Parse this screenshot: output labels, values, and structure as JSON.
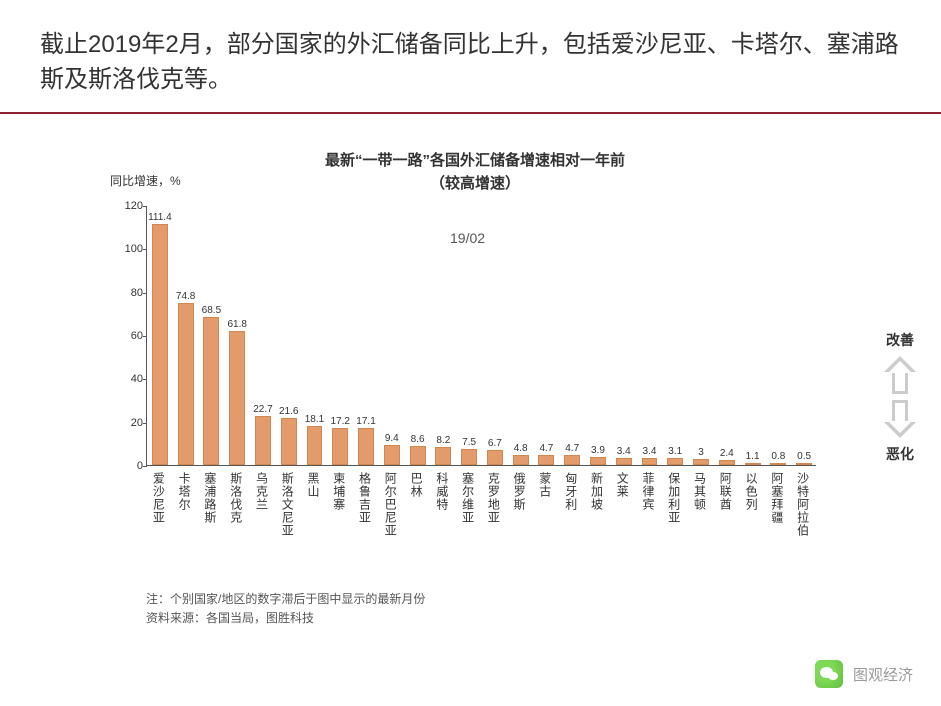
{
  "header": {
    "text": "截止2019年2月，部分国家的外汇储备同比上升，包括爱沙尼亚、卡塔尔、塞浦路斯及斯洛伐克等。"
  },
  "chart": {
    "type": "bar",
    "title_line1": "最新“一带一路”各国外汇储备增速相对一年前",
    "title_line2": "（较高增速）",
    "y_unit_label": "同比增速，%",
    "date_label": "19/02",
    "ylim": [
      0,
      120
    ],
    "ytick_step": 20,
    "yticks": [
      0,
      20,
      40,
      60,
      80,
      100,
      120
    ],
    "bar_color": "#e39b6b",
    "bar_border": "#d08850",
    "label_fontsize": 10,
    "xlabel_fontsize": 12,
    "categories": [
      "爱沙尼亚",
      "卡塔尔",
      "塞浦路斯",
      "斯洛伐克",
      "乌克兰",
      "斯洛文尼亚",
      "黑山",
      "柬埔寨",
      "格鲁吉亚",
      "阿尔巴尼亚",
      "巴林",
      "科威特",
      "塞尔维亚",
      "克罗地亚",
      "俄罗斯",
      "蒙古",
      "匈牙利",
      "新加坡",
      "文莱",
      "菲律宾",
      "保加利亚",
      "马其顿",
      "阿联酋",
      "以色列",
      "阿塞拜疆",
      "沙特阿拉伯"
    ],
    "values": [
      111.4,
      74.8,
      68.5,
      61.8,
      22.7,
      21.6,
      18.1,
      17.2,
      17.1,
      9.4,
      8.6,
      8.2,
      7.5,
      6.7,
      4.8,
      4.7,
      4.7,
      3.9,
      3.4,
      3.4,
      3.1,
      3.0,
      2.4,
      1.1,
      0.8,
      0.5
    ]
  },
  "annot": {
    "improve": "改善",
    "worsen": "恶化"
  },
  "note": {
    "line1": "注：个别国家/地区的数字滞后于图中显示的最新月份",
    "line2": "资料来源：各国当局，图胜科技"
  },
  "footer": {
    "brand": "图观经济"
  }
}
